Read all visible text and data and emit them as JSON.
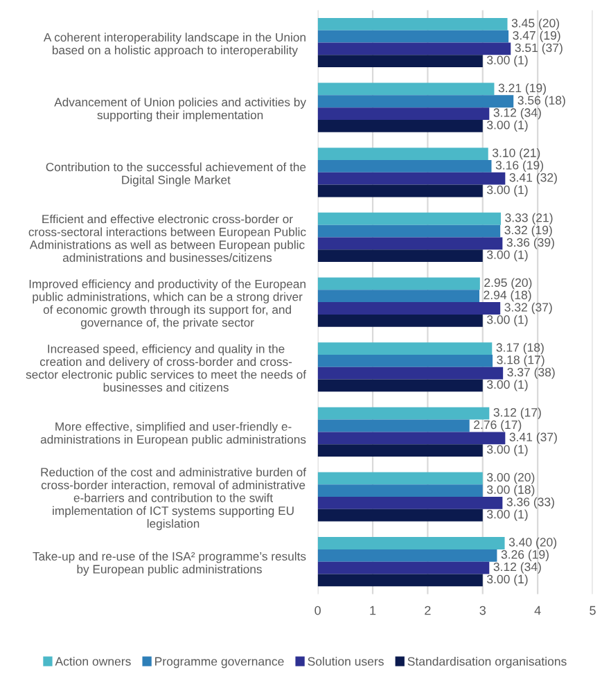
{
  "chart_data": {
    "type": "bar",
    "orientation": "horizontal",
    "categories": [
      "A coherent interoperability landscape in the Union\nbased on a holistic approach to interoperability",
      "Advancement of Union policies and activities by\nsupporting their implementation",
      "Contribution to the successful achievement of the\nDigital Single Market",
      "Efficient and effective electronic cross-border or\ncross-sectoral interactions between European Public\nAdministrations as well as between European public\nadministrations and businesses/citizens",
      "Improved efficiency and productivity of the European\npublic administrations, which can be a strong driver\nof economic growth through its support for, and\ngovernance of, the private sector",
      "Increased speed, efficiency and quality in the\ncreation and delivery of cross-border and cross-\nsector electronic public services to meet the needs of\nbusinesses and citizens",
      "More effective, simplified and user-friendly e-\nadministrations in European public administrations",
      "Reduction of the cost and administrative burden of\ncross-border interaction, removal of administrative\ne-barriers and contribution to the swift\nimplementation of ICT systems supporting EU\nlegislation",
      "Take-up and re-use of the ISA² programme’s results\nby European public administrations"
    ],
    "series": [
      {
        "name": "Action owners",
        "color": "#4bb8c8",
        "values": [
          3.45,
          3.21,
          3.1,
          3.33,
          2.95,
          3.17,
          3.12,
          3.0,
          3.4
        ],
        "value_labels": [
          "3.45 (20)",
          "3.21 (19)",
          "3.10 (21)",
          "3.33 (21)",
          "2.95 (20)",
          "3.17 (18)",
          "3.12 (17)",
          "3.00 (20)",
          "3.40 (20)"
        ]
      },
      {
        "name": "Programme governance",
        "color": "#2e7fb8",
        "values": [
          3.47,
          3.56,
          3.16,
          3.32,
          2.94,
          3.18,
          2.76,
          3.0,
          3.26
        ],
        "value_labels": [
          "3.47 (19)",
          "3.56 (18)",
          "3.16 (19)",
          "3.32 (19)",
          "2.94 (18)",
          "3.18 (17)",
          "2.76 (17)",
          "3.00 (18)",
          "3.26 (19)"
        ]
      },
      {
        "name": "Solution users",
        "color": "#2e3192",
        "values": [
          3.51,
          3.12,
          3.41,
          3.36,
          3.32,
          3.37,
          3.41,
          3.36,
          3.12
        ],
        "value_labels": [
          "3.51 (37)",
          "3.12 (34)",
          "3.41 (32)",
          "3.36 (39)",
          "3.32 (37)",
          "3.37 (38)",
          "3.41 (37)",
          "3.36 (33)",
          "3.12 (34)"
        ]
      },
      {
        "name": "Standardisation organisations",
        "color": "#0b1a4e",
        "values": [
          3.0,
          3.0,
          3.0,
          3.0,
          3.0,
          3.0,
          3.0,
          3.0,
          3.0
        ],
        "value_labels": [
          "3.00 (1)",
          "3.00 (1)",
          "3.00 (1)",
          "3.00 (1)",
          "3.00 (1)",
          "3.00 (1)",
          "3.00 (1)",
          "3.00 (1)",
          "3.00 (1)"
        ]
      }
    ],
    "xlim": [
      0,
      5
    ],
    "xticks": [
      0,
      1,
      2,
      3,
      4,
      5
    ],
    "grid": "x",
    "legend": "bottom"
  }
}
